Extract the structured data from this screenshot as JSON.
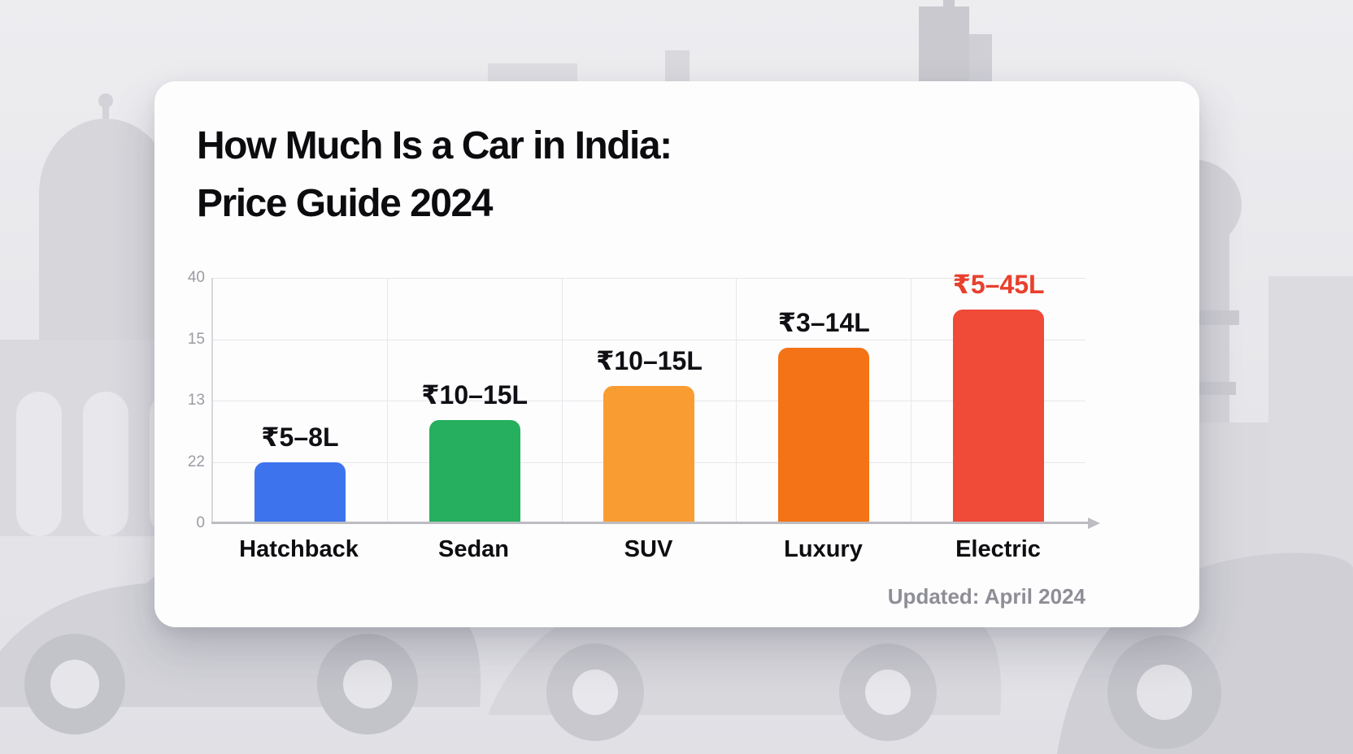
{
  "title": {
    "line1": "How Much Is a Car in India:",
    "line2": "Price Guide 2024"
  },
  "footer": {
    "updated_text": "Updated: April 2024"
  },
  "chart_data": {
    "type": "bar",
    "title": "How Much Is a Car in India: Price Guide 2024",
    "categories": [
      "Hatchback",
      "Sedan",
      "SUV",
      "Luxury",
      "Electric"
    ],
    "y_ticks_top_to_bottom": [
      "40",
      "15",
      "13",
      "22",
      "0"
    ],
    "grid": true,
    "legend": false,
    "bars": [
      {
        "category": "Hatchback",
        "price_label": "₹5–8L",
        "color": "#3D74EE",
        "height_fraction": 0.25,
        "label_color": "#101014"
      },
      {
        "category": "Sedan",
        "price_label": "₹10–15L",
        "color": "#25AF5E",
        "height_fraction": 0.42,
        "label_color": "#101014"
      },
      {
        "category": "SUV",
        "price_label": "₹10–15L",
        "color": "#F99D33",
        "height_fraction": 0.56,
        "label_color": "#101014"
      },
      {
        "category": "Luxury",
        "price_label": "₹3–14L",
        "color": "#F47317",
        "height_fraction": 0.715,
        "label_color": "#101014"
      },
      {
        "category": "Electric",
        "price_label": "₹5–45L",
        "color": "#F04A38",
        "height_fraction": 0.87,
        "label_color": "#E8402D"
      }
    ]
  }
}
